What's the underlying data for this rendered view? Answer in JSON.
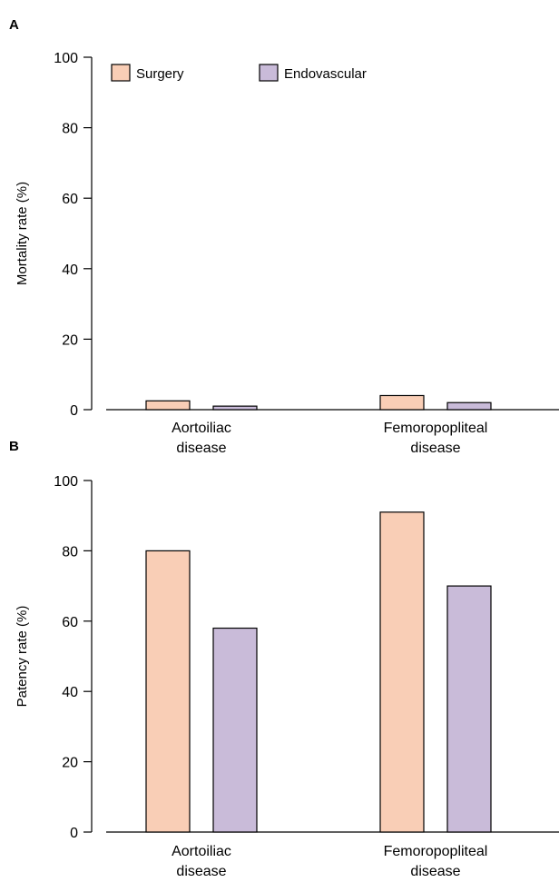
{
  "chart_data": [
    {
      "type": "bar",
      "panel_label": "A",
      "categories": [
        [
          "Aortoiliac",
          "disease"
        ],
        [
          "Femoropopliteal",
          "disease"
        ]
      ],
      "series": [
        {
          "name": "Surgery",
          "values": [
            2.5,
            4.0
          ]
        },
        {
          "name": "Endovascular",
          "values": [
            1.0,
            2.0
          ]
        }
      ],
      "ylabel": "Mortality rate (%)",
      "ylim": [
        0,
        100
      ],
      "yticks": [
        0,
        20,
        40,
        60,
        80,
        100
      ],
      "grid": false,
      "legend": "top-left"
    },
    {
      "type": "bar",
      "panel_label": "B",
      "categories": [
        [
          "Aortoiliac",
          "disease"
        ],
        [
          "Femoropopliteal",
          "disease"
        ]
      ],
      "series": [
        {
          "name": "Surgery",
          "values": [
            80,
            91
          ]
        },
        {
          "name": "Endovascular",
          "values": [
            58,
            70
          ]
        }
      ],
      "ylabel": "Patency rate (%)",
      "ylim": [
        0,
        100
      ],
      "yticks": [
        0,
        20,
        40,
        60,
        80,
        100
      ],
      "grid": false,
      "legend": "none"
    }
  ],
  "colors": {
    "Surgery": "#f9ceb6",
    "Endovascular": "#c9bbd9",
    "stroke": "#000000"
  }
}
